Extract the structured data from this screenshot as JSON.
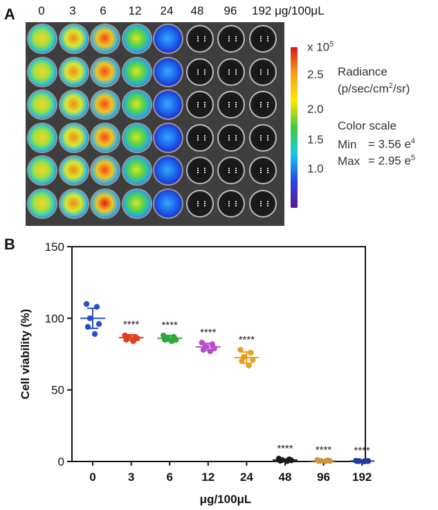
{
  "panel_a": {
    "letter": "A",
    "concentrations": [
      "0",
      "3",
      "6",
      "12",
      "24",
      "48",
      "96",
      "192 μg/100μL"
    ],
    "colorbar": {
      "multiplier_base": "x 10",
      "multiplier_exp": "5",
      "ticks": [
        "2.5",
        "2.0",
        "1.5",
        "1.0"
      ],
      "radiance_label": "Radiance",
      "radiance_unit_pre": "(p/sec/cm",
      "radiance_unit_sup": "2",
      "radiance_unit_post": "/sr)",
      "color_scale_label": "Color scale",
      "min_label": "Min",
      "min_value": "= 3.56 e",
      "min_exp": "4",
      "max_label": "Max",
      "max_value": "= 2.95 e",
      "max_exp": "5"
    },
    "colors": {
      "colorbar_stops": [
        "#d61a1a",
        "#f3a21b",
        "#ffe800",
        "#3ecb3e",
        "#19c6e6",
        "#2746e6",
        "#5a1a8a"
      ]
    }
  },
  "chart_data": {
    "type": "scatter",
    "panel_letter": "B",
    "xlabel": "μg/100μL",
    "ylabel": "Cell viability (%)",
    "ylim": [
      0,
      150
    ],
    "yticks": [
      0,
      50,
      100,
      150
    ],
    "categories": [
      "0",
      "3",
      "6",
      "12",
      "24",
      "48",
      "96",
      "192"
    ],
    "series": [
      {
        "category": "0",
        "color": "#2a4ec9",
        "mean": 100,
        "sd": 7,
        "significance": "",
        "points": [
          110,
          108,
          100,
          96,
          94,
          89
        ]
      },
      {
        "category": "3",
        "color": "#e0401f",
        "mean": 86.5,
        "sd": 2,
        "significance": "****",
        "points": [
          88,
          87,
          87,
          86,
          85,
          84
        ]
      },
      {
        "category": "6",
        "color": "#2fa83a",
        "mean": 86,
        "sd": 2,
        "significance": "****",
        "points": [
          88,
          87,
          86,
          85,
          85,
          84
        ]
      },
      {
        "category": "12",
        "color": "#b54ec9",
        "mean": 80,
        "sd": 2.5,
        "significance": "****",
        "points": [
          83,
          82,
          80,
          79,
          78,
          77
        ]
      },
      {
        "category": "24",
        "color": "#e8a020",
        "mean": 72.5,
        "sd": 4,
        "significance": "****",
        "points": [
          78,
          76,
          73,
          71,
          70,
          67
        ]
      },
      {
        "category": "48",
        "color": "#1a1a1a",
        "mean": 1,
        "sd": 0.6,
        "significance": "****",
        "points": [
          2,
          1.5,
          1,
          0.8,
          0.5,
          0.3
        ]
      },
      {
        "category": "96",
        "color": "#c8963c",
        "mean": 0.5,
        "sd": 0.3,
        "significance": "****",
        "points": [
          1,
          0.8,
          0.5,
          0.4,
          0.3,
          0.2
        ]
      },
      {
        "category": "192",
        "color": "#1f3b9e",
        "mean": 0.3,
        "sd": 0.2,
        "significance": "****",
        "points": [
          0.5,
          0.4,
          0.3,
          0.3,
          0.2,
          0.1
        ]
      }
    ]
  }
}
